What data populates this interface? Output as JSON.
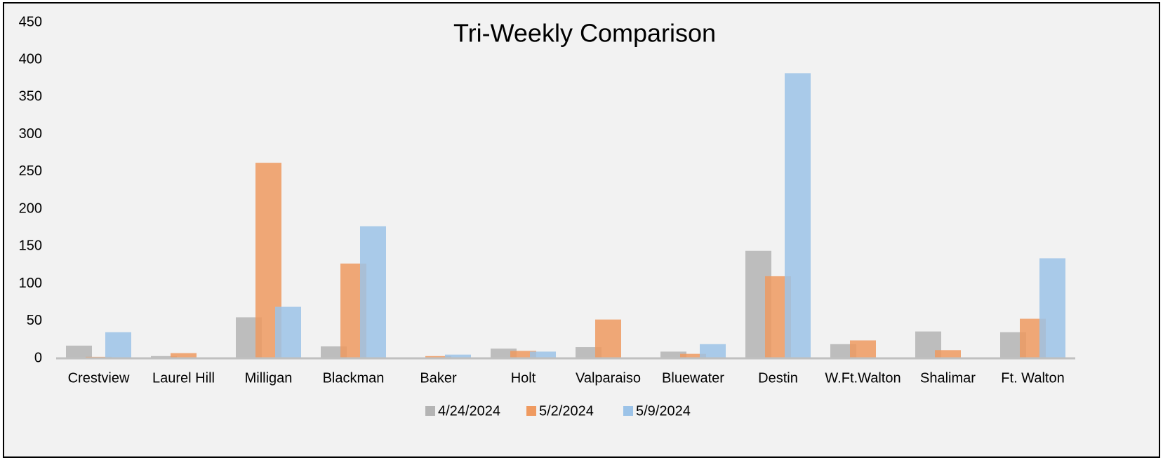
{
  "chart_data": {
    "type": "bar",
    "title": "Tri-Weekly Comparison",
    "categories": [
      "Crestview",
      "Laurel Hill",
      "Milligan",
      "Blackman",
      "Baker",
      "Holt",
      "Valparaiso",
      "Bluewater",
      "Destin",
      "W.Ft.Walton",
      "Shalimar",
      "Ft. Walton"
    ],
    "series": [
      {
        "name": "4/24/2024",
        "color": "#b4b4b4",
        "values": [
          17,
          3,
          55,
          16,
          0,
          13,
          15,
          9,
          144,
          19,
          36,
          35
        ]
      },
      {
        "name": "5/2/2024",
        "color": "#ef9a60",
        "values": [
          2,
          7,
          262,
          127,
          3,
          10,
          52,
          6,
          110,
          24,
          11,
          53
        ]
      },
      {
        "name": "5/9/2024",
        "color": "#9cc3e8",
        "values": [
          35,
          0,
          69,
          177,
          5,
          9,
          0,
          19,
          382,
          0,
          0,
          134
        ]
      }
    ],
    "ylim": [
      0,
      450
    ],
    "yticks": [
      0,
      50,
      100,
      150,
      200,
      250,
      300,
      350,
      400,
      450
    ],
    "legend": "bottom"
  }
}
